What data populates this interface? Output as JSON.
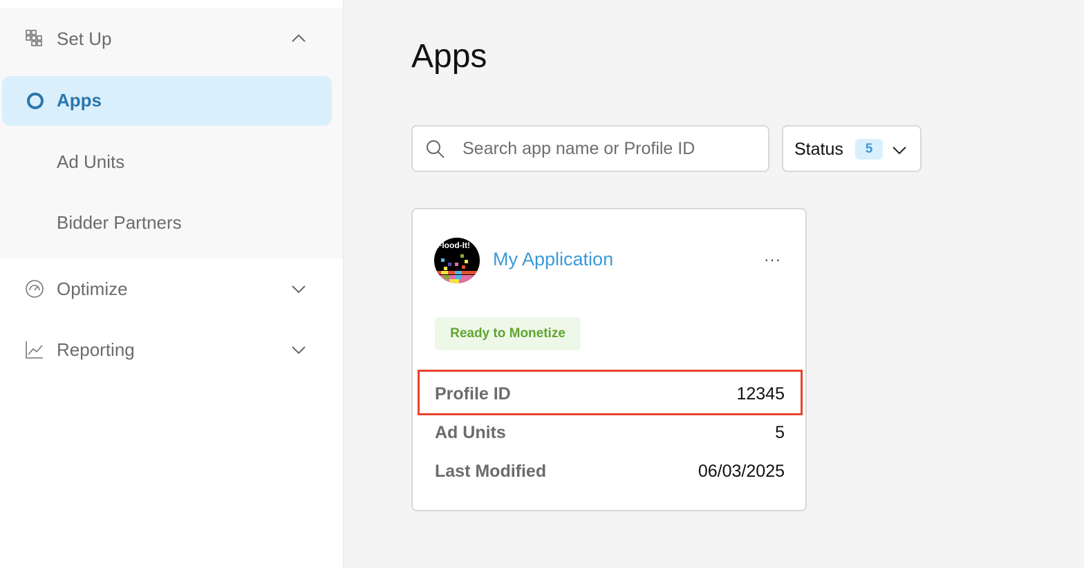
{
  "sidebar": {
    "setup": {
      "label": "Set Up",
      "icon": "grid-icon",
      "expanded": true
    },
    "items": [
      {
        "label": "Apps",
        "active": true
      },
      {
        "label": "Ad Units"
      },
      {
        "label": "Bidder Partners"
      }
    ],
    "optimize": {
      "label": "Optimize",
      "icon": "gauge-icon"
    },
    "reporting": {
      "label": "Reporting",
      "icon": "chart-line-icon"
    }
  },
  "main": {
    "title": "Apps",
    "search": {
      "placeholder": "Search app name or Profile ID",
      "value": ""
    },
    "status_filter": {
      "label": "Status",
      "count": "5"
    },
    "card": {
      "logo_text": "Flood-It!",
      "name": "My Application",
      "more": "···",
      "badge": "Ready to Monetize",
      "fields": [
        {
          "label": "Profile ID",
          "value": "12345"
        },
        {
          "label": "Ad Units",
          "value": "5"
        },
        {
          "label": "Last Modified",
          "value": "06/03/2025"
        }
      ]
    }
  },
  "colors": {
    "accent": "#2a76ad",
    "link": "#3a9ad9",
    "success": "#5fa52f",
    "highlight": "#e8412b"
  }
}
